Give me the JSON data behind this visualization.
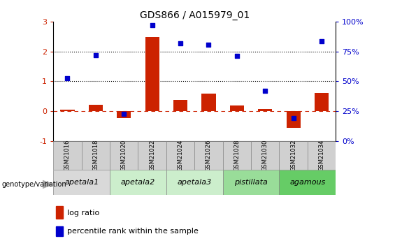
{
  "title": "GDS866 / A015979_01",
  "samples": [
    "GSM21016",
    "GSM21018",
    "GSM21020",
    "GSM21022",
    "GSM21024",
    "GSM21026",
    "GSM21028",
    "GSM21030",
    "GSM21032",
    "GSM21034"
  ],
  "log_ratio": [
    0.05,
    0.22,
    -0.22,
    2.48,
    0.38,
    0.58,
    0.18,
    0.07,
    -0.55,
    0.62
  ],
  "percentile_rank": [
    1.1,
    1.88,
    -0.08,
    2.88,
    2.28,
    2.22,
    1.85,
    0.68,
    -0.22,
    2.35
  ],
  "bar_color": "#cc2200",
  "dot_color": "#0000cc",
  "groups": [
    {
      "label": "apetala1",
      "start": 0,
      "end": 2,
      "color": "#d9d9d9"
    },
    {
      "label": "apetala2",
      "start": 2,
      "end": 4,
      "color": "#cceecc"
    },
    {
      "label": "apetala3",
      "start": 4,
      "end": 6,
      "color": "#cceecc"
    },
    {
      "label": "pistillata",
      "start": 6,
      "end": 8,
      "color": "#99dd99"
    },
    {
      "label": "agamous",
      "start": 8,
      "end": 10,
      "color": "#66cc66"
    }
  ],
  "ylim_left": [
    -1,
    3
  ],
  "yticks_left": [
    -1,
    0,
    1,
    2,
    3
  ],
  "right_tick_labels": [
    "0%",
    "25%",
    "50%",
    "75%",
    "100%"
  ],
  "legend_bar_label": "log ratio",
  "legend_dot_label": "percentile rank within the sample",
  "genotype_label": "genotype/variation",
  "left_tick_color": "#cc2200",
  "right_tick_color": "#0000cc"
}
